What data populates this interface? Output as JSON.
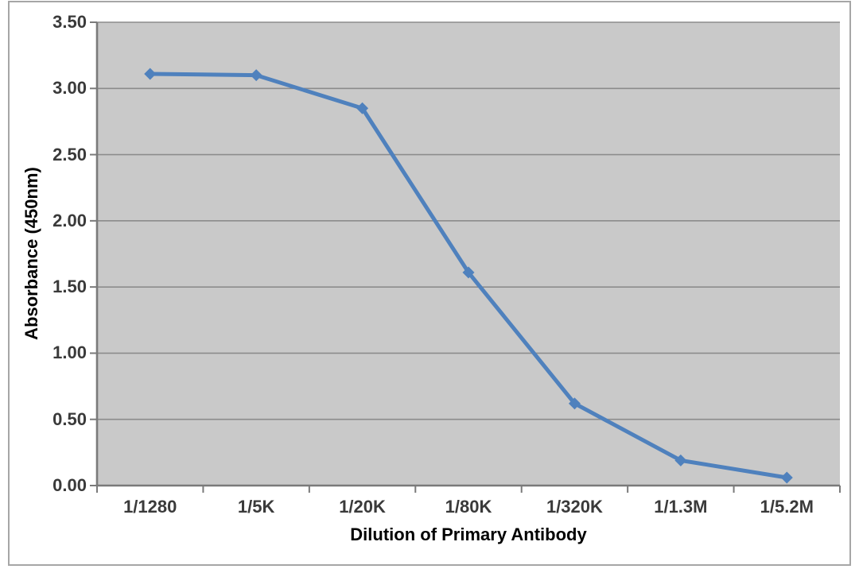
{
  "chart_data": {
    "type": "line",
    "title": "",
    "xlabel": "Dilution of Primary Antibody",
    "ylabel": "Absorbance (450nm)",
    "categories": [
      "1/1280",
      "1/5K",
      "1/20K",
      "1/80K",
      "1/320K",
      "1/1.3M",
      "1/5.2M"
    ],
    "series": [
      {
        "name": "Absorbance",
        "values": [
          3.11,
          3.1,
          2.85,
          1.61,
          0.62,
          0.19,
          0.06
        ]
      }
    ],
    "ylim": [
      0,
      3.5
    ],
    "ytick_step": 0.5,
    "y_tick_labels": [
      "0.00",
      "0.50",
      "1.00",
      "1.50",
      "2.00",
      "2.50",
      "3.00",
      "3.50"
    ],
    "grid": "horizontal",
    "legend_position": "none",
    "marker": "diamond",
    "colors": {
      "line": "#4f81bd",
      "plot_background": "#c9c9c9",
      "gridline": "#8c8c8c",
      "axis_line": "#7a7a7a",
      "tick_text": "#3a3a3a",
      "title_text": "#000000",
      "frame_border": "#a6a6a6",
      "page_background": "#ffffff"
    }
  }
}
